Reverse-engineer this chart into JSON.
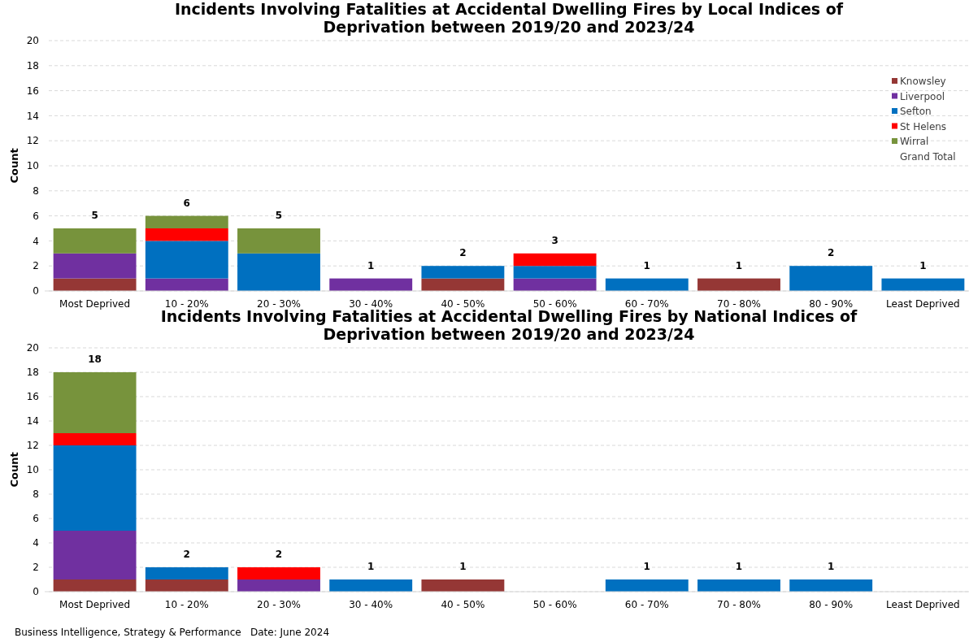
{
  "chart_data": [
    {
      "type": "bar",
      "title": "Incidents Involving Fatalities at Accidental Dwelling Fires by Local Indices of Deprivation between 2019/20 and 2023/24",
      "ylabel": "Count",
      "categories": [
        "Most Deprived",
        "10 - 20%",
        "20 - 30%",
        "30 - 40%",
        "40 - 50%",
        "50 - 60%",
        "60 - 70%",
        "70 - 80%",
        "80 - 90%",
        "Least Deprived"
      ],
      "stacked": true,
      "ylim": [
        0,
        20
      ],
      "yticks": [
        0,
        2,
        4,
        6,
        8,
        10,
        12,
        14,
        16,
        18,
        20
      ],
      "grid": "y",
      "legend": "right",
      "series": [
        {
          "name": "Knowsley",
          "color": "#953735",
          "values": [
            1,
            0,
            0,
            0,
            1,
            0,
            0,
            1,
            0,
            0
          ]
        },
        {
          "name": "Liverpool",
          "color": "#7030a0",
          "values": [
            2,
            1,
            0,
            1,
            0,
            1,
            0,
            0,
            0,
            0
          ]
        },
        {
          "name": "Sefton",
          "color": "#0070c0",
          "values": [
            0,
            3,
            3,
            0,
            1,
            1,
            1,
            0,
            2,
            1
          ]
        },
        {
          "name": "St Helens",
          "color": "#ff0000",
          "values": [
            0,
            1,
            0,
            0,
            0,
            1,
            0,
            0,
            0,
            0
          ]
        },
        {
          "name": "Wirral",
          "color": "#77933c",
          "values": [
            2,
            1,
            2,
            0,
            0,
            0,
            0,
            0,
            0,
            0
          ]
        },
        {
          "name": "Grand Total",
          "values": [
            null,
            null,
            null,
            null,
            null,
            null,
            null,
            null,
            null,
            null
          ]
        }
      ],
      "totals": [
        "5",
        "6",
        "5",
        "1",
        "2",
        "3",
        "1",
        "1",
        "2",
        "1"
      ]
    },
    {
      "type": "bar",
      "title": "Incidents Involving Fatalities at Accidental Dwelling Fires by National Indices of Deprivation between 2019/20 and 2023/24",
      "ylabel": "Count",
      "categories": [
        "Most Deprived",
        "10 - 20%",
        "20 - 30%",
        "30 - 40%",
        "40 - 50%",
        "50 - 60%",
        "60 - 70%",
        "70 - 80%",
        "80 - 90%",
        "Least Deprived"
      ],
      "stacked": true,
      "ylim": [
        0,
        20
      ],
      "yticks": [
        0,
        2,
        4,
        6,
        8,
        10,
        12,
        14,
        16,
        18,
        20
      ],
      "grid": "y",
      "series": [
        {
          "color": "#953735",
          "values": [
            1,
            1,
            0,
            0,
            1,
            0,
            0,
            0,
            0,
            0
          ]
        },
        {
          "color": "#7030a0",
          "values": [
            4,
            0,
            1,
            0,
            0,
            0,
            0,
            0,
            0,
            0
          ]
        },
        {
          "color": "#0070c0",
          "values": [
            7,
            1,
            0,
            1,
            0,
            0,
            1,
            1,
            1,
            0
          ]
        },
        {
          "color": "#ff0000",
          "values": [
            1,
            0,
            1,
            0,
            0,
            0,
            0,
            0,
            0,
            0
          ]
        },
        {
          "color": "#77933c",
          "values": [
            5,
            0,
            0,
            0,
            0,
            0,
            0,
            0,
            0,
            0
          ]
        }
      ],
      "totals": [
        "18",
        "2",
        "2",
        "1",
        "1",
        null,
        "1",
        "1",
        "1",
        null
      ],
      "annotations": [
        "Business Intelligence,  Strategy & Performance",
        "Date: June 2024"
      ]
    }
  ]
}
